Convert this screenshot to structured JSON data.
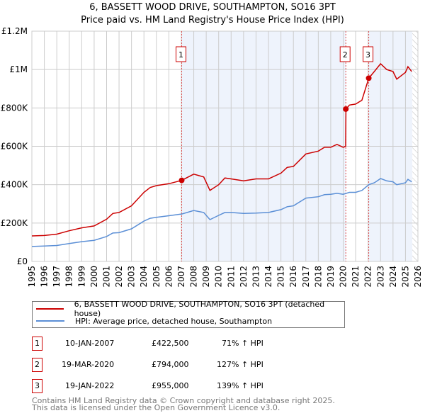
{
  "title": "6, BASSETT WOOD DRIVE, SOUTHAMPTON, SO16 3PT",
  "subtitle": "Price paid vs. HM Land Registry's House Price Index (HPI)",
  "colors": {
    "property": "#cc0000",
    "hpi": "#5b8fd6",
    "shade": "#eef3fc",
    "grid": "#cccccc"
  },
  "chart_data": {
    "type": "line",
    "xlim": [
      1995,
      2026
    ],
    "ylim": [
      0,
      1200000
    ],
    "x_ticks": [
      "1995",
      "1996",
      "1997",
      "1998",
      "1999",
      "2000",
      "2001",
      "2002",
      "2003",
      "2004",
      "2005",
      "2006",
      "2007",
      "2008",
      "2009",
      "2010",
      "2011",
      "2012",
      "2013",
      "2014",
      "2015",
      "2016",
      "2017",
      "2018",
      "2019",
      "2020",
      "2021",
      "2022",
      "2023",
      "2024",
      "2025",
      "2026"
    ],
    "y_ticks": [
      {
        "v": 0,
        "label": "£0"
      },
      {
        "v": 200000,
        "label": "£200K"
      },
      {
        "v": 400000,
        "label": "£400K"
      },
      {
        "v": 600000,
        "label": "£600K"
      },
      {
        "v": 800000,
        "label": "£800K"
      },
      {
        "v": 1000000,
        "label": "£1M"
      },
      {
        "v": 1200000,
        "label": "£1.2M"
      }
    ],
    "series": [
      {
        "name": "6, BASSETT WOOD DRIVE, SOUTHAMPTON, SO16 3PT (detached house)",
        "color": "#cc0000",
        "x": [
          1995,
          1996,
          1997,
          1998,
          1999,
          2000,
          2001,
          2001.5,
          2002,
          2003,
          2004,
          2004.5,
          2005,
          2006,
          2007.03,
          2008,
          2008.8,
          2009.3,
          2010,
          2010.5,
          2011,
          2012,
          2013,
          2014,
          2015,
          2015.5,
          2016,
          2017,
          2018,
          2018.5,
          2019,
          2019.5,
          2020,
          2020.2,
          2020.22,
          2020.5,
          2021,
          2021.5,
          2022.05,
          2022.5,
          2023,
          2023.5,
          2024,
          2024.3,
          2025,
          2025.2,
          2025.5
        ],
        "y": [
          133000,
          135000,
          142000,
          160000,
          175000,
          185000,
          220000,
          250000,
          255000,
          290000,
          360000,
          385000,
          395000,
          405000,
          422500,
          455000,
          440000,
          370000,
          400000,
          435000,
          430000,
          420000,
          430000,
          430000,
          460000,
          490000,
          495000,
          560000,
          575000,
          595000,
          595000,
          610000,
          595000,
          600000,
          794000,
          815000,
          820000,
          840000,
          955000,
          990000,
          1030000,
          1000000,
          990000,
          950000,
          985000,
          1015000,
          990000
        ]
      },
      {
        "name": "HPI: Average price, detached house, Southampton",
        "color": "#5b8fd6",
        "x": [
          1995,
          1996,
          1997,
          1998,
          1999,
          2000,
          2001,
          2001.5,
          2002,
          2003,
          2004,
          2004.5,
          2005,
          2006,
          2007.03,
          2008,
          2008.8,
          2009.3,
          2010,
          2010.5,
          2011,
          2012,
          2013,
          2014,
          2015,
          2015.5,
          2016,
          2017,
          2018,
          2018.5,
          2019,
          2019.5,
          2020,
          2020.5,
          2021,
          2021.5,
          2022.05,
          2022.5,
          2023,
          2023.5,
          2024,
          2024.3,
          2025,
          2025.2,
          2025.5
        ],
        "y": [
          78000,
          80000,
          83000,
          93000,
          103000,
          110000,
          130000,
          148000,
          150000,
          170000,
          210000,
          225000,
          230000,
          238000,
          247000,
          265000,
          255000,
          218000,
          240000,
          255000,
          255000,
          250000,
          252000,
          255000,
          270000,
          285000,
          290000,
          330000,
          337000,
          348000,
          350000,
          355000,
          350000,
          360000,
          360000,
          370000,
          400000,
          410000,
          432000,
          420000,
          415000,
          400000,
          410000,
          428000,
          415000
        ]
      }
    ],
    "sales": [
      {
        "label": "1",
        "x": 2007.03,
        "y": 422500
      },
      {
        "label": "2",
        "x": 2020.21,
        "y": 794000
      },
      {
        "label": "3",
        "x": 2022.05,
        "y": 955000
      }
    ],
    "forecast_start": 2025.55
  },
  "legend": {
    "property": "6, BASSETT WOOD DRIVE, SOUTHAMPTON, SO16 3PT (detached house)",
    "hpi": "HPI: Average price, detached house, Southampton"
  },
  "transactions": [
    {
      "num": "1",
      "date": "10-JAN-2007",
      "price": "£422,500",
      "hpi": "71% ↑ HPI"
    },
    {
      "num": "2",
      "date": "19-MAR-2020",
      "price": "£794,000",
      "hpi": "127% ↑ HPI"
    },
    {
      "num": "3",
      "date": "19-JAN-2022",
      "price": "£955,000",
      "hpi": "139% ↑ HPI"
    }
  ],
  "footer": {
    "line1": "Contains HM Land Registry data © Crown copyright and database right 2025.",
    "line2": "This data is licensed under the Open Government Licence v3.0."
  }
}
